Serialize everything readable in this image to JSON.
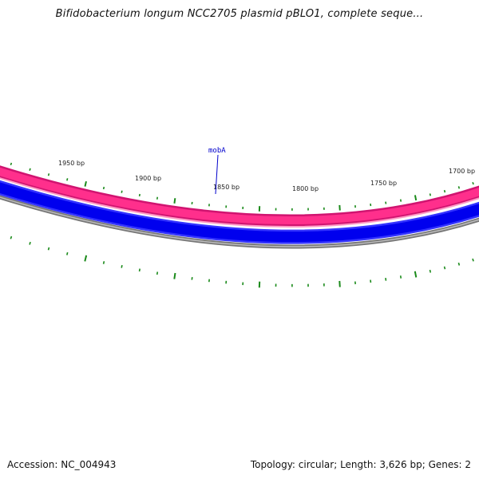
{
  "header": {
    "title": "Bifidobacterium longum NCC2705 plasmid pBLO1, complete seque..."
  },
  "map": {
    "ring_colors": {
      "forward_strand": "#ff2f8c",
      "forward_strand_light": "#ff7fb7",
      "reverse_strand": "#0000ee",
      "reverse_strand_light": "#7777ff",
      "backbone": "#777777",
      "ticks": "#1a8a1a",
      "gene_label": "#0000cc"
    },
    "tick_labels": [
      "1950 bp",
      "1900 bp",
      "1850 bp",
      "1800 bp",
      "1750 bp",
      "1700 bp"
    ],
    "gene_label": "mobA"
  },
  "footer": {
    "accession": "Accession: NC_004943",
    "summary": "Topology: circular; Length: 3,626 bp; Genes: 2"
  }
}
